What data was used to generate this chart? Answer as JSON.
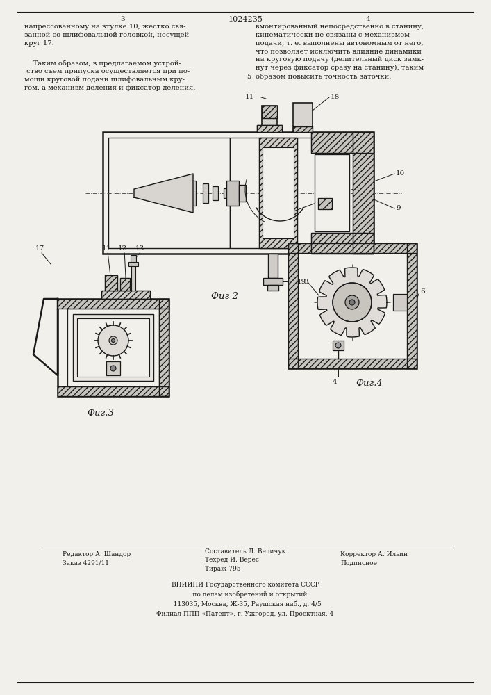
{
  "page_width": 7.07,
  "page_height": 10.0,
  "bg_color": "#f2f0eb",
  "title_number": "1024235",
  "text_col1_top": "напрессованному на втулке 10, жестко свя-\nзанной со шлифовальной головкой, несущей\nкруг 17.",
  "text_col1_bot": "    Таким образом, в предлагаемом устрой-\n ство съем припуска осуществляется при по-\nмощи круговой подачи шлифовальным кру-\nгом, а механизм деления и фиксатор деления,",
  "text_col2_top": "вмонтированный непосредственно в станину,\nкинематически не связаны с механизмом\nподачи, т. е. выполнены автономным от него,\nчто позволяет исключить влияние динамики\nна круговую подачу (делительный диск замк-\nнут через фиксатор сразу на станину), таким\nобразом повысить точность заточки.",
  "fig2_caption": "Фиг 2",
  "fig3_caption": "Фиг.3",
  "fig4_caption": "Фиг.4",
  "footer_col1": "Редактор А. Шандор\nЗаказ 4291/11",
  "footer_col2": "Составитель Л. Величук\nТехред И. Верес\nТираж 795",
  "footer_col3": "Корректор А. Ильин\nПодписное",
  "footer_vniipи_lines": [
    "ВНИИПИ Государственного комитета СССР",
    "     по делам изобретений и открытий",
    "  113035, Москва, Ж-35, Раушская наб., д. 4/5",
    "Филиал ППП «Патент», г. Ужгород, ул. Проектная, 4"
  ],
  "lc": "#1a1a1a",
  "bg_draw": "#f2f0eb",
  "hatch_fc": "#c8c4be"
}
